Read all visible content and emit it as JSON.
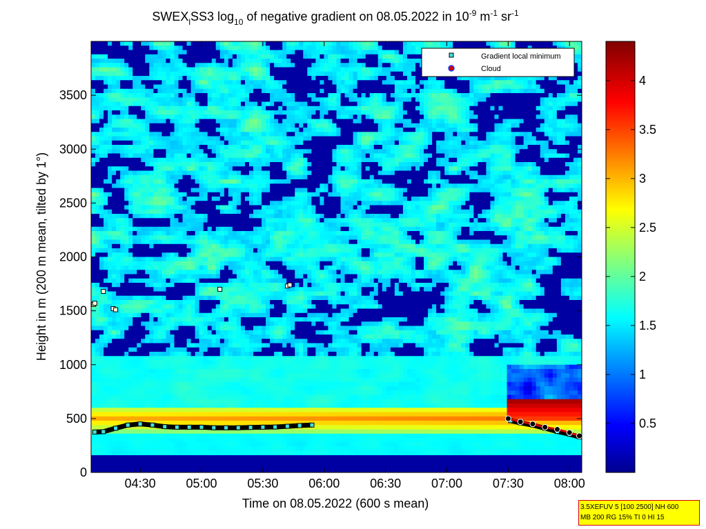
{
  "chart_data": {
    "type": "heatmap",
    "title": {
      "part1": "SWEX",
      "sub1": "l",
      "part2": "SS3 log",
      "sub2": "10",
      "part3": " of negative gradient on 08.05.2022 in 10",
      "sup1": "-9",
      "part4": " m",
      "sup2": "-1",
      "part5": " sr",
      "sup3": "-1"
    },
    "xlabel": "Time on 08.05.2022 (600 s mean)",
    "ylabel": "Height in m (200 m mean, tilted by 1°)",
    "x_ticks": [
      "04:30",
      "05:00",
      "05:30",
      "06:00",
      "06:30",
      "07:00",
      "07:30",
      "08:00"
    ],
    "x_tick_hours": [
      4.5,
      5.0,
      5.5,
      6.0,
      6.5,
      7.0,
      7.5,
      8.0
    ],
    "xlim_hours": [
      4.1,
      8.1
    ],
    "y_ticks": [
      "0",
      "500",
      "1000",
      "1500",
      "2000",
      "2500",
      "3000",
      "3500"
    ],
    "y_tick_values": [
      0,
      500,
      1000,
      1500,
      2000,
      2500,
      3000,
      3500
    ],
    "ylim": [
      0,
      4000
    ],
    "colorbar": {
      "ticks": [
        "0.5",
        "1",
        "1.5",
        "2",
        "2.5",
        "3",
        "3.5",
        "4"
      ],
      "tick_values": [
        0.5,
        1.0,
        1.5,
        2.0,
        2.5,
        3.0,
        3.5,
        4.0
      ],
      "range": [
        0.0,
        4.4
      ],
      "colormap": "jet"
    },
    "legend": {
      "placement": "top-right",
      "entries": [
        {
          "label": "Gradient local minimum",
          "marker": "square",
          "color": "#40e0e0"
        },
        {
          "label": "Cloud",
          "marker": "circle",
          "color": "#d00000"
        }
      ]
    },
    "series": [
      {
        "name": "Gradient local minimum",
        "points": [
          [
            4.13,
            375
          ],
          [
            4.2,
            378
          ],
          [
            4.3,
            410
          ],
          [
            4.4,
            440
          ],
          [
            4.5,
            450
          ],
          [
            4.6,
            440
          ],
          [
            4.7,
            425
          ],
          [
            4.8,
            420
          ],
          [
            4.9,
            420
          ],
          [
            5.0,
            420
          ],
          [
            5.1,
            415
          ],
          [
            5.2,
            415
          ],
          [
            5.3,
            415
          ],
          [
            5.4,
            418
          ],
          [
            5.5,
            420
          ],
          [
            5.6,
            422
          ],
          [
            5.7,
            428
          ],
          [
            5.8,
            435
          ],
          [
            5.9,
            440
          ],
          [
            7.52,
            480
          ],
          [
            7.6,
            460
          ],
          [
            7.7,
            440
          ],
          [
            7.8,
            410
          ],
          [
            7.9,
            380
          ],
          [
            8.0,
            355
          ],
          [
            8.08,
            330
          ],
          [
            4.12,
            1560
          ],
          [
            4.13,
            1570
          ],
          [
            4.28,
            1520
          ],
          [
            4.3,
            1510
          ],
          [
            4.2,
            1680
          ],
          [
            5.15,
            1700
          ],
          [
            5.7,
            1730
          ],
          [
            5.72,
            1740
          ]
        ]
      },
      {
        "name": "Cloud",
        "points": [
          [
            7.5,
            500
          ],
          [
            7.6,
            470
          ],
          [
            7.7,
            450
          ],
          [
            7.8,
            420
          ],
          [
            7.9,
            400
          ],
          [
            8.0,
            370
          ],
          [
            8.08,
            340
          ]
        ]
      }
    ],
    "cloud_top_layer": {
      "x_start": 7.5,
      "x_end": 8.1,
      "y_bottom": 500,
      "y_top": 680
    },
    "boundary_layer": {
      "x_start": 4.1,
      "x_end": 8.1,
      "y_bottom": 380,
      "y_top": 620
    }
  },
  "info_box": {
    "line1": "3.5XEFUV 5 [100 2500] NH 600",
    "line2": "MB 200 RG 15% TI 0 HI 15",
    "border_color": "#d00000",
    "background_color": "#ffff00"
  }
}
